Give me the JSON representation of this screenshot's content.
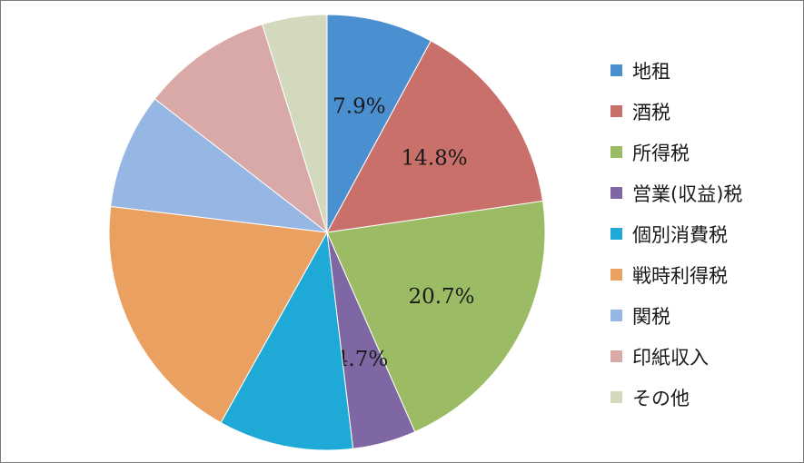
{
  "chart_data": {
    "type": "pie",
    "start_angle_deg": 0,
    "direction": "clockwise",
    "legend_position": "right",
    "slices": [
      {
        "label": "地租",
        "value": 7.9,
        "value_label": "7.9%",
        "color": "#4a8fd0"
      },
      {
        "label": "酒税",
        "value": 14.8,
        "value_label": "14.8%",
        "color": "#c9706b"
      },
      {
        "label": "所得税",
        "value": 20.7,
        "value_label": "20.7%",
        "color": "#9bbb64"
      },
      {
        "label": "営業(収益)税",
        "value": 4.7,
        "value_label": "4.7%",
        "color": "#7e67a3"
      },
      {
        "label": "個別消費税",
        "value": 10.0,
        "value_label": "",
        "color": "#1fa9d6"
      },
      {
        "label": "戦時利得税",
        "value": 18.8,
        "value_label": "",
        "color": "#e9a060"
      },
      {
        "label": "関税",
        "value": 8.6,
        "value_label": "",
        "color": "#96b7e3"
      },
      {
        "label": "印紙収入",
        "value": 9.7,
        "value_label": "",
        "color": "#d8a9a7"
      },
      {
        "label": "その他",
        "value": 4.8,
        "value_label": "",
        "color": "#d3d9bd"
      }
    ]
  }
}
